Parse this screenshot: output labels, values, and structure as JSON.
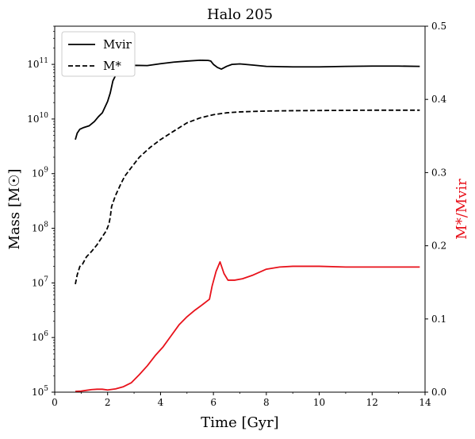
{
  "chart_data": {
    "type": "line",
    "title": "Halo 205",
    "xlabel": "Time [Gyr]",
    "ylabel_left": "Mass [M☉]",
    "ylabel_right": "M*/Mvir",
    "xlim": [
      0,
      14
    ],
    "ylim_left": [
      100000,
      500000000000
    ],
    "ylim_left_scale": "log",
    "ylim_right": [
      0.0,
      0.5
    ],
    "x_ticks": [
      "0",
      "2",
      "4",
      "6",
      "8",
      "10",
      "12",
      "14"
    ],
    "y_left_ticks": [
      "10^5",
      "10^6",
      "10^7",
      "10^8",
      "10^9",
      "10^10",
      "10^11"
    ],
    "y_right_ticks": [
      "0.0",
      "0.1",
      "0.2",
      "0.3",
      "0.4",
      "0.5"
    ],
    "legend_placement": "top-left",
    "grid": false,
    "colors": {
      "mvir": "#000000",
      "mstar": "#000000",
      "ratio": "#e8121b"
    },
    "series": [
      {
        "name": "Mvir",
        "axis": "left",
        "style": "solid",
        "color": "#000000",
        "points": [
          [
            0.78,
            4200000000.0
          ],
          [
            0.85,
            5500000000.0
          ],
          [
            0.95,
            6500000000.0
          ],
          [
            1.1,
            7000000000.0
          ],
          [
            1.3,
            7500000000.0
          ],
          [
            1.5,
            9000000000.0
          ],
          [
            1.65,
            11000000000.0
          ],
          [
            1.8,
            13000000000.0
          ],
          [
            2.0,
            21000000000.0
          ],
          [
            2.1,
            30000000000.0
          ],
          [
            2.2,
            50000000000.0
          ],
          [
            2.35,
            70000000000.0
          ],
          [
            2.5,
            83000000000.0
          ],
          [
            2.7,
            92000000000.0
          ],
          [
            3.0,
            96000000000.0
          ],
          [
            3.5,
            95000000000.0
          ],
          [
            4.0,
            103000000000.0
          ],
          [
            4.5,
            110000000000.0
          ],
          [
            5.0,
            115000000000.0
          ],
          [
            5.5,
            119000000000.0
          ],
          [
            5.8,
            118000000000.0
          ],
          [
            5.9,
            115000000000.0
          ],
          [
            6.0,
            100000000000.0
          ],
          [
            6.15,
            88000000000.0
          ],
          [
            6.3,
            82000000000.0
          ],
          [
            6.5,
            92000000000.0
          ],
          [
            6.7,
            100000000000.0
          ],
          [
            7.0,
            102000000000.0
          ],
          [
            7.5,
            97000000000.0
          ],
          [
            8.0,
            92000000000.0
          ],
          [
            9.0,
            90000000000.0
          ],
          [
            10.0,
            90000000000.0
          ],
          [
            11.0,
            92000000000.0
          ],
          [
            12.0,
            93000000000.0
          ],
          [
            13.0,
            93000000000.0
          ],
          [
            13.8,
            92000000000.0
          ]
        ]
      },
      {
        "name": "M*",
        "axis": "left",
        "style": "dashed",
        "color": "#000000",
        "points": [
          [
            0.78,
            9500000.0
          ],
          [
            0.85,
            14000000.0
          ],
          [
            0.95,
            20000000.0
          ],
          [
            1.05,
            22000000.0
          ],
          [
            1.2,
            30000000.0
          ],
          [
            1.4,
            38000000.0
          ],
          [
            1.6,
            50000000.0
          ],
          [
            1.8,
            70000000.0
          ],
          [
            1.95,
            90000000.0
          ],
          [
            2.05,
            120000000.0
          ],
          [
            2.1,
            160000000.0
          ],
          [
            2.15,
            250000000.0
          ],
          [
            2.3,
            400000000.0
          ],
          [
            2.5,
            650000000.0
          ],
          [
            2.65,
            900000000.0
          ],
          [
            2.9,
            1300000000.0
          ],
          [
            3.2,
            2000000000.0
          ],
          [
            3.6,
            3000000000.0
          ],
          [
            4.0,
            4200000000.0
          ],
          [
            4.5,
            6000000000.0
          ],
          [
            5.0,
            8500000000.0
          ],
          [
            5.5,
            10500000000.0
          ],
          [
            6.0,
            12000000000.0
          ],
          [
            6.5,
            13000000000.0
          ],
          [
            7.0,
            13500000000.0
          ],
          [
            8.0,
            14000000000.0
          ],
          [
            9.0,
            14200000000.0
          ],
          [
            10.0,
            14300000000.0
          ],
          [
            11.0,
            14400000000.0
          ],
          [
            12.0,
            14500000000.0
          ],
          [
            13.0,
            14500000000.0
          ],
          [
            13.8,
            14500000000.0
          ]
        ]
      },
      {
        "name": "M*/Mvir",
        "axis": "right",
        "style": "solid",
        "color": "#e8121b",
        "points": [
          [
            0.78,
            0.001
          ],
          [
            1.0,
            0.0015
          ],
          [
            1.2,
            0.0025
          ],
          [
            1.4,
            0.0035
          ],
          [
            1.6,
            0.004
          ],
          [
            1.8,
            0.004
          ],
          [
            2.0,
            0.003
          ],
          [
            2.3,
            0.0045
          ],
          [
            2.6,
            0.0075
          ],
          [
            2.9,
            0.013
          ],
          [
            3.2,
            0.024
          ],
          [
            3.5,
            0.036
          ],
          [
            3.8,
            0.05
          ],
          [
            4.1,
            0.062
          ],
          [
            4.4,
            0.077
          ],
          [
            4.7,
            0.092
          ],
          [
            5.0,
            0.103
          ],
          [
            5.3,
            0.112
          ],
          [
            5.6,
            0.12
          ],
          [
            5.85,
            0.127
          ],
          [
            5.95,
            0.145
          ],
          [
            6.1,
            0.165
          ],
          [
            6.25,
            0.178
          ],
          [
            6.4,
            0.162
          ],
          [
            6.55,
            0.153
          ],
          [
            6.8,
            0.153
          ],
          [
            7.1,
            0.155
          ],
          [
            7.5,
            0.16
          ],
          [
            8.0,
            0.168
          ],
          [
            8.5,
            0.171
          ],
          [
            9.0,
            0.172
          ],
          [
            10.0,
            0.172
          ],
          [
            11.0,
            0.171
          ],
          [
            12.0,
            0.171
          ],
          [
            13.0,
            0.171
          ],
          [
            13.8,
            0.171
          ]
        ]
      }
    ]
  }
}
